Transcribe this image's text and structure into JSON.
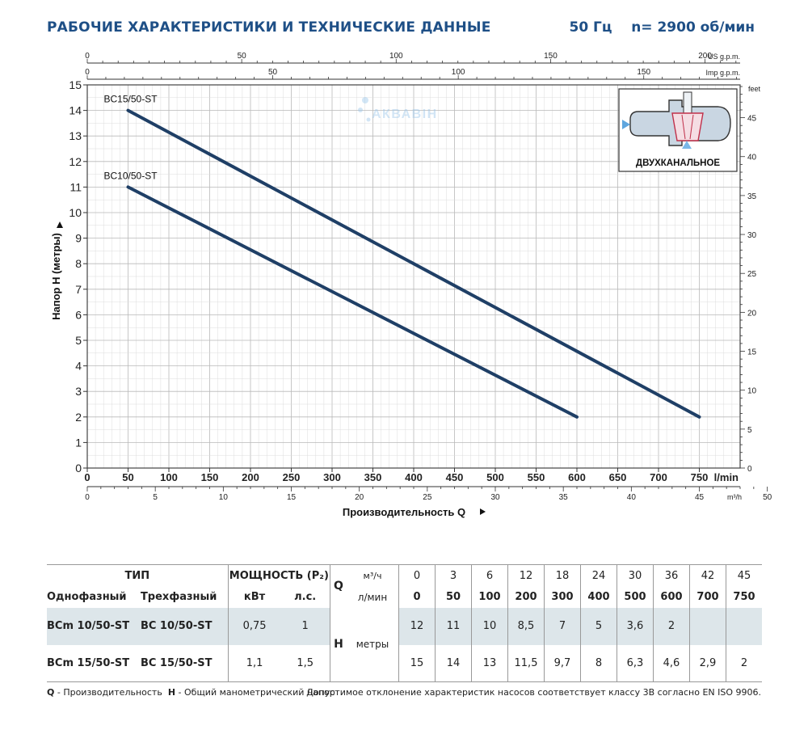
{
  "header": {
    "title": "РАБОЧИЕ ХАРАКТЕРИСТИКИ И ТЕХНИЧЕСКИЕ ДАННЫЕ",
    "frequency": "50 Гц",
    "speed": "n= 2900 об/мин"
  },
  "chart_data": {
    "type": "line",
    "title": "",
    "xlabel": "Производительность Q",
    "ylabel": "Напор H (метры)",
    "xlim": [
      0,
      800
    ],
    "ylim": [
      0,
      15
    ],
    "x_unit": "l/min",
    "x_ticks": [
      0,
      50,
      100,
      150,
      200,
      250,
      300,
      350,
      400,
      450,
      500,
      550,
      600,
      650,
      700,
      750
    ],
    "y_ticks": [
      0,
      1,
      2,
      3,
      4,
      5,
      6,
      7,
      8,
      9,
      10,
      11,
      12,
      13,
      14,
      15
    ],
    "secondary_axes": {
      "m3h": {
        "label": "m³/h",
        "ticks": [
          0,
          5,
          10,
          15,
          20,
          25,
          30,
          35,
          40,
          45,
          50
        ]
      },
      "us_gpm": {
        "label": "US g.p.m.",
        "ticks": [
          0,
          50,
          100,
          150,
          200
        ]
      },
      "imp_gpm": {
        "label": "Imp g.p.m.",
        "ticks": [
          0,
          50,
          100,
          150
        ]
      },
      "feet": {
        "label": "feet",
        "ticks": [
          0,
          5,
          10,
          15,
          20,
          25,
          30,
          35,
          40,
          45
        ]
      }
    },
    "series": [
      {
        "name": "BC15/50-ST",
        "x": [
          50,
          750
        ],
        "y": [
          14,
          2
        ],
        "color": "#1f3f66"
      },
      {
        "name": "BC10/50-ST",
        "x": [
          50,
          600
        ],
        "y": [
          11,
          2
        ],
        "color": "#1f3f66"
      }
    ],
    "grid": true
  },
  "inset": {
    "label": "ДВУХКАНАЛЬНОЕ"
  },
  "watermark": {
    "text": "АКВАВІН"
  },
  "table": {
    "type_header": "ТИП",
    "power_header": "МОЩНОСТЬ (P₂)",
    "single_phase": "Однофазный",
    "three_phase": "Трехфазный",
    "kw": "кВт",
    "hp": "л.с.",
    "q_symbol": "Q",
    "q_unit_m3": "м³/ч",
    "q_unit_lmin": "л/мин",
    "h_symbol": "H",
    "h_unit": "метры",
    "q_m3h": [
      "0",
      "3",
      "6",
      "12",
      "18",
      "24",
      "30",
      "36",
      "42",
      "45"
    ],
    "q_lmin": [
      "0",
      "50",
      "100",
      "200",
      "300",
      "400",
      "500",
      "600",
      "700",
      "750"
    ],
    "rows": [
      {
        "single": "BCm 10/50-ST",
        "three": "BC 10/50-ST",
        "kw": "0,75",
        "hp": "1",
        "h": [
          "12",
          "11",
          "10",
          "8,5",
          "7",
          "5",
          "3,6",
          "2",
          "",
          ""
        ]
      },
      {
        "single": "BCm 15/50-ST",
        "three": "BC 15/50-ST",
        "kw": "1,1",
        "hp": "1,5",
        "h": [
          "15",
          "14",
          "13",
          "11,5",
          "9,7",
          "8",
          "6,3",
          "4,6",
          "2,9",
          "2"
        ]
      }
    ]
  },
  "footer": {
    "q_sym": "Q",
    "q_desc": " - Производительность",
    "h_sym": "H",
    "h_desc": " - Общий манометрический напор",
    "note": "Допустимое отклонение характеристик насосов соответствует классу 3В согласно EN ISO 9906."
  }
}
